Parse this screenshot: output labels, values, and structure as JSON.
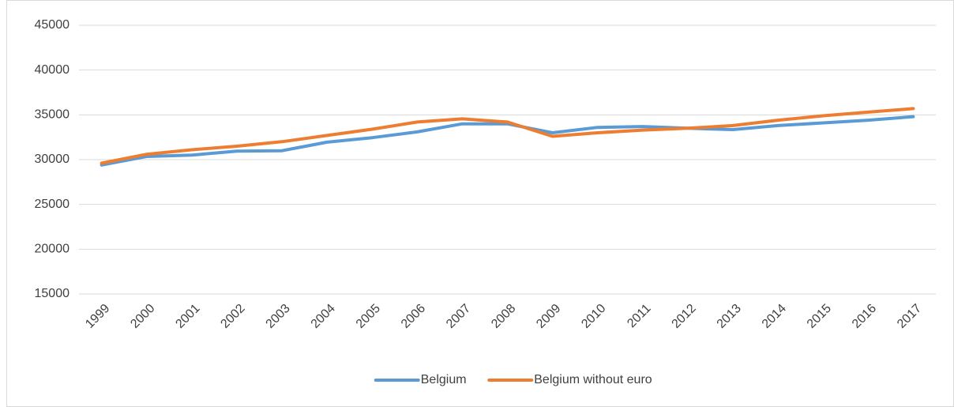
{
  "chart_data": {
    "type": "line",
    "categories": [
      "1999",
      "2000",
      "2001",
      "2002",
      "2003",
      "2004",
      "2005",
      "2006",
      "2007",
      "2008",
      "2009",
      "2010",
      "2011",
      "2012",
      "2013",
      "2014",
      "2015",
      "2016",
      "2017"
    ],
    "series": [
      {
        "name": "Belgium",
        "color": "#5b9bd5",
        "values": [
          29400,
          30350,
          30500,
          30950,
          31000,
          31950,
          32450,
          33100,
          34000,
          34000,
          33000,
          33600,
          33700,
          33500,
          33350,
          33800,
          34100,
          34400,
          34800
        ]
      },
      {
        "name": "Belgium without euro",
        "color": "#ed7d31",
        "values": [
          29600,
          30600,
          31100,
          31500,
          32000,
          32700,
          33400,
          34200,
          34550,
          34200,
          32600,
          33000,
          33300,
          33500,
          33800,
          34400,
          34900,
          35300,
          35700
        ]
      }
    ],
    "ylim": [
      15000,
      45000
    ],
    "yticks": [
      15000,
      20000,
      25000,
      30000,
      35000,
      40000,
      45000
    ],
    "grid": true,
    "legend": "bottom"
  }
}
